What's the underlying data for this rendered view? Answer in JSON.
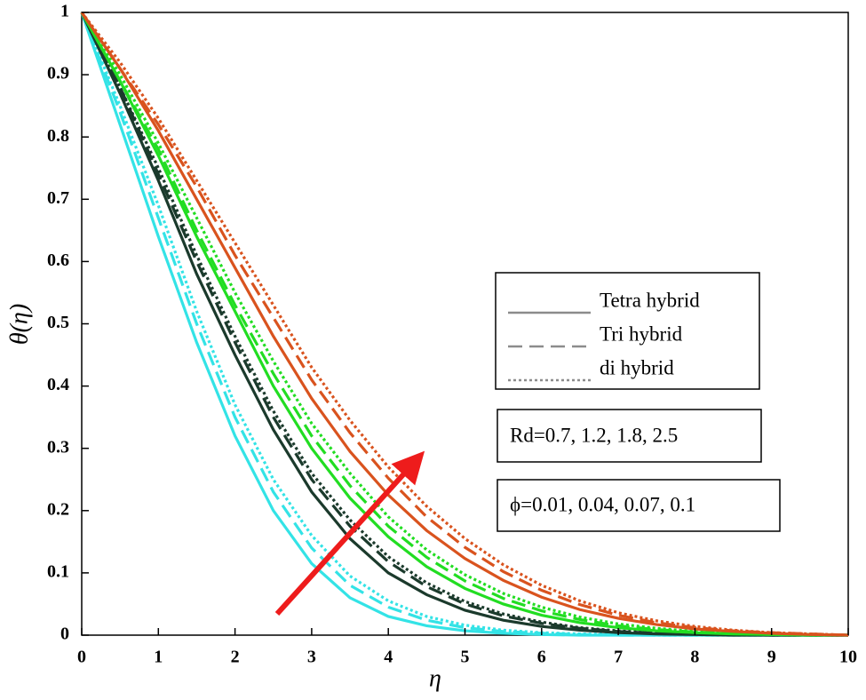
{
  "chart_data": {
    "type": "line",
    "xlabel": "η",
    "ylabel": "θ(η)",
    "x": [
      0,
      0.5,
      1,
      1.5,
      2,
      2.5,
      3,
      3.5,
      4,
      4.5,
      5,
      5.5,
      6,
      6.5,
      7,
      7.5,
      8,
      8.5,
      9,
      9.5,
      10
    ],
    "xlim": [
      0,
      10
    ],
    "ylim": [
      0,
      1
    ],
    "xticks": [
      0,
      1,
      2,
      3,
      4,
      5,
      6,
      7,
      8,
      9,
      10
    ],
    "yticks": [
      0,
      0.1,
      0.2,
      0.3,
      0.4,
      0.5,
      0.6,
      0.7,
      0.8,
      0.9,
      1
    ],
    "series": [
      {
        "color": "#33e3e6",
        "style": "solid",
        "values": [
          1,
          0.82,
          0.64,
          0.47,
          0.32,
          0.2,
          0.115,
          0.06,
          0.03,
          0.015,
          0.007,
          0.003,
          0.001,
          0,
          0,
          0,
          0,
          0,
          0,
          0,
          0
        ]
      },
      {
        "color": "#33e3e6",
        "style": "dashed",
        "values": [
          1,
          0.84,
          0.67,
          0.5,
          0.35,
          0.23,
          0.14,
          0.08,
          0.045,
          0.024,
          0.012,
          0.006,
          0.003,
          0.001,
          0,
          0,
          0,
          0,
          0,
          0,
          0
        ]
      },
      {
        "color": "#33e3e6",
        "style": "dotted",
        "values": [
          1,
          0.85,
          0.69,
          0.52,
          0.37,
          0.25,
          0.16,
          0.095,
          0.055,
          0.03,
          0.016,
          0.008,
          0.004,
          0.002,
          0.001,
          0,
          0,
          0,
          0,
          0,
          0
        ]
      },
      {
        "color": "#1b3a2c",
        "style": "solid",
        "values": [
          1,
          0.87,
          0.73,
          0.58,
          0.45,
          0.33,
          0.23,
          0.155,
          0.1,
          0.065,
          0.04,
          0.024,
          0.014,
          0.008,
          0.004,
          0.002,
          0.001,
          0,
          0,
          0,
          0
        ]
      },
      {
        "color": "#1b3a2c",
        "style": "dashed",
        "values": [
          1,
          0.88,
          0.74,
          0.6,
          0.47,
          0.35,
          0.25,
          0.175,
          0.118,
          0.078,
          0.05,
          0.031,
          0.019,
          0.011,
          0.006,
          0.003,
          0.002,
          0.001,
          0,
          0,
          0
        ]
      },
      {
        "color": "#1b3a2c",
        "style": "dotted",
        "values": [
          1,
          0.88,
          0.75,
          0.61,
          0.48,
          0.36,
          0.26,
          0.185,
          0.126,
          0.084,
          0.054,
          0.034,
          0.021,
          0.012,
          0.007,
          0.004,
          0.002,
          0.001,
          0,
          0,
          0
        ]
      },
      {
        "color": "#22dd22",
        "style": "solid",
        "values": [
          1,
          0.89,
          0.77,
          0.64,
          0.52,
          0.4,
          0.3,
          0.22,
          0.158,
          0.11,
          0.075,
          0.05,
          0.032,
          0.02,
          0.012,
          0.007,
          0.004,
          0.002,
          0.001,
          0,
          0
        ]
      },
      {
        "color": "#22dd22",
        "style": "dashed",
        "values": [
          1,
          0.89,
          0.78,
          0.65,
          0.53,
          0.42,
          0.32,
          0.24,
          0.175,
          0.125,
          0.087,
          0.059,
          0.039,
          0.025,
          0.015,
          0.009,
          0.005,
          0.003,
          0.001,
          0.001,
          0
        ]
      },
      {
        "color": "#22dd22",
        "style": "dotted",
        "values": [
          1,
          0.9,
          0.79,
          0.67,
          0.55,
          0.44,
          0.34,
          0.26,
          0.19,
          0.137,
          0.097,
          0.067,
          0.045,
          0.029,
          0.018,
          0.011,
          0.006,
          0.003,
          0.002,
          0.001,
          0
        ]
      },
      {
        "color": "#d9531e",
        "style": "solid",
        "values": [
          1,
          0.91,
          0.81,
          0.7,
          0.59,
          0.48,
          0.38,
          0.295,
          0.225,
          0.168,
          0.123,
          0.088,
          0.061,
          0.041,
          0.027,
          0.017,
          0.01,
          0.006,
          0.003,
          0.001,
          0
        ]
      },
      {
        "color": "#d9531e",
        "style": "dashed",
        "values": [
          1,
          0.91,
          0.82,
          0.72,
          0.61,
          0.51,
          0.41,
          0.325,
          0.252,
          0.19,
          0.141,
          0.102,
          0.072,
          0.049,
          0.032,
          0.02,
          0.012,
          0.007,
          0.004,
          0.002,
          0
        ]
      },
      {
        "color": "#d9531e",
        "style": "dotted",
        "values": [
          1,
          0.92,
          0.83,
          0.73,
          0.63,
          0.53,
          0.43,
          0.345,
          0.27,
          0.207,
          0.155,
          0.113,
          0.08,
          0.055,
          0.036,
          0.023,
          0.014,
          0.008,
          0.004,
          0.002,
          0
        ]
      }
    ],
    "legend": {
      "color": "#8c8c8c",
      "entries": [
        {
          "label": "Tetra hybrid",
          "style": "solid"
        },
        {
          "label": "Tri hybrid",
          "style": "dashed"
        },
        {
          "label": "di hybrid",
          "style": "dotted"
        }
      ]
    },
    "annotations": [
      "Rd=0.7, 1.2, 1.8, 2.5",
      "ϕ=0.01, 0.04, 0.07, 0.1"
    ]
  }
}
